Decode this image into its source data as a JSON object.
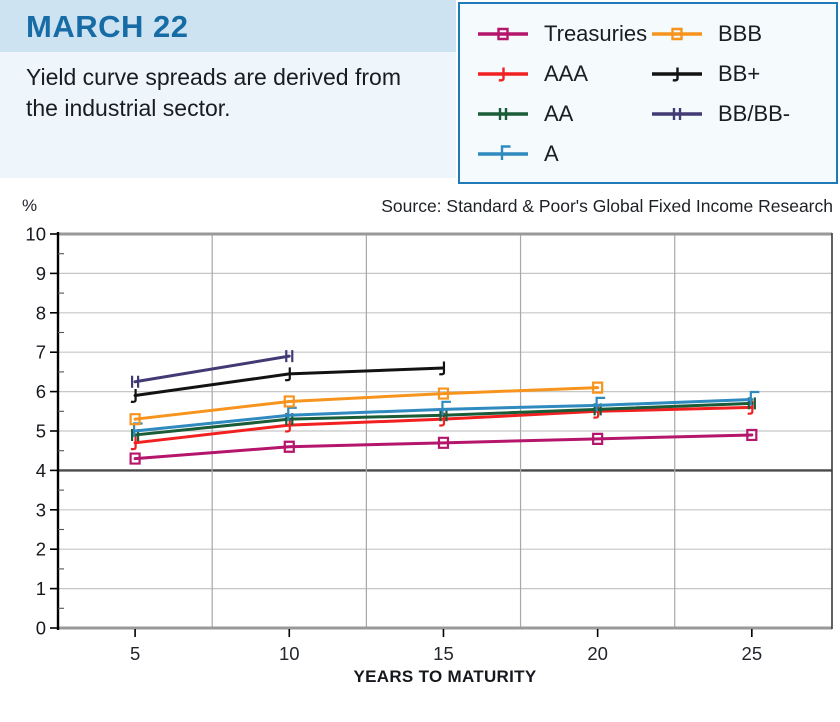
{
  "header": {
    "title": "MARCH 22",
    "subtitle": "Yield curve spreads are derived from the industrial sector."
  },
  "source_note": "Source: Standard & Poor's Global Fixed Income Research",
  "colors": {
    "header_bg": "#cde3f1",
    "subtitle_bg": "#eef5fb",
    "header_text": "#176ca6",
    "legend_border": "#1f7ab9",
    "legend_bg": "#f5fafd",
    "gridline": "#c6c6c6",
    "gridline_vertical": "#a8a8a8",
    "gridline_dark": "#4a4a4a",
    "border_gray": "#999999",
    "axis_black": "#000000"
  },
  "chart_data": {
    "type": "line",
    "title": "",
    "xlabel": "YEARS TO MATURITY",
    "ylabel": "%",
    "xlim": [
      2.5,
      27.6
    ],
    "ylim": [
      0,
      10
    ],
    "x_ticks": [
      5,
      10,
      15,
      20,
      25
    ],
    "y_ticks": [
      0,
      1,
      2,
      3,
      4,
      5,
      6,
      7,
      8,
      9,
      10
    ],
    "y_minor_step": 0.5,
    "x_gridlines": [
      7.5,
      12.5,
      17.5,
      22.5
    ],
    "dark_gridline_y": 4,
    "grid": true,
    "legend_position": "top-right",
    "series": [
      {
        "name": "Treasuries",
        "color": "#b5156b",
        "marker": "square",
        "x": [
          5,
          10,
          15,
          20,
          25
        ],
        "y": [
          4.3,
          4.6,
          4.7,
          4.8,
          4.9
        ]
      },
      {
        "name": "AAA",
        "color": "#f22020",
        "marker": "hook",
        "x": [
          5,
          10,
          15,
          20,
          25
        ],
        "y": [
          4.7,
          5.15,
          5.3,
          5.5,
          5.6
        ]
      },
      {
        "name": "AA",
        "color": "#1a5c38",
        "marker": "doubletick",
        "x": [
          5,
          10,
          15,
          20,
          25
        ],
        "y": [
          4.9,
          5.3,
          5.4,
          5.55,
          5.7
        ]
      },
      {
        "name": "A",
        "color": "#2f8abf",
        "marker": "flag",
        "x": [
          5,
          10,
          15,
          20,
          25
        ],
        "y": [
          5.0,
          5.4,
          5.55,
          5.65,
          5.8
        ]
      },
      {
        "name": "BBB",
        "color": "#f7941e",
        "marker": "square",
        "x": [
          5,
          10,
          15,
          20
        ],
        "y": [
          5.3,
          5.75,
          5.95,
          6.1
        ]
      },
      {
        "name": "BB+",
        "color": "#121212",
        "marker": "hook",
        "x": [
          5,
          10,
          15
        ],
        "y": [
          5.9,
          6.45,
          6.6
        ]
      },
      {
        "name": "BB/BB-",
        "color": "#413a75",
        "marker": "doubletick",
        "x": [
          5,
          10
        ],
        "y": [
          6.25,
          6.9
        ]
      }
    ]
  }
}
